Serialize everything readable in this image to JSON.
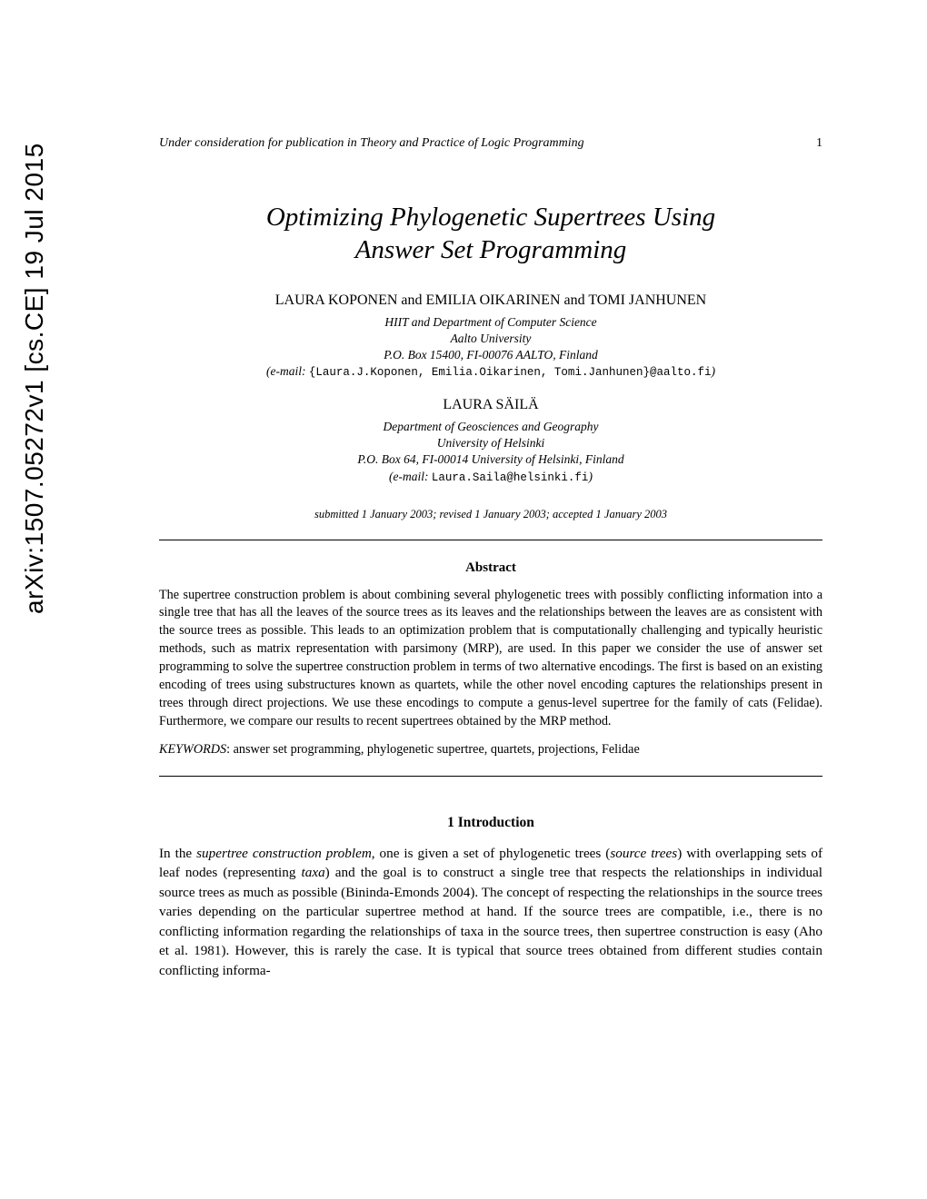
{
  "arxiv_stamp": "arXiv:1507.05272v1  [cs.CE]  19 Jul 2015",
  "running_head": {
    "text": "Under consideration for publication in Theory and Practice of Logic Programming",
    "page_number": "1"
  },
  "title_line1": "Optimizing Phylogenetic Supertrees Using",
  "title_line2": "Answer Set Programming",
  "authors_line1": "LAURA KOPONEN and EMILIA OIKARINEN and TOMI JANHUNEN",
  "affil1_line1": "HIIT and Department of Computer Science",
  "affil1_line2": "Aalto University",
  "affil1_line3": "P.O. Box 15400, FI-00076 AALTO, Finland",
  "email1_label": "e-mail:",
  "email1_addr": "{Laura.J.Koponen, Emilia.Oikarinen, Tomi.Janhunen}@aalto.fi",
  "authors_line2": "LAURA SÄILÄ",
  "affil2_line1": "Department of Geosciences and Geography",
  "affil2_line2": "University of Helsinki",
  "affil2_line3": "P.O. Box 64, FI-00014 University of Helsinki, Finland",
  "email2_label": "e-mail:",
  "email2_addr": "Laura.Saila@helsinki.fi",
  "dates": "submitted 1 January 2003; revised 1 January 2003; accepted 1 January 2003",
  "abstract_heading": "Abstract",
  "abstract_text": "The supertree construction problem is about combining several phylogenetic trees with possibly conflicting information into a single tree that has all the leaves of the source trees as its leaves and the relationships between the leaves are as consistent with the source trees as possible. This leads to an optimization problem that is computationally challenging and typically heuristic methods, such as matrix representation with parsimony (MRP), are used. In this paper we consider the use of answer set programming to solve the supertree construction problem in terms of two alternative encodings. The first is based on an existing encoding of trees using substructures known as quartets, while the other novel encoding captures the relationships present in trees through direct projections. We use these encodings to compute a genus-level supertree for the family of cats (Felidae). Furthermore, we compare our results to recent supertrees obtained by the MRP method.",
  "keywords_label": "KEYWORDS",
  "keywords_text": ": answer set programming, phylogenetic supertree, quartets, projections, Felidae",
  "intro_heading": "1  Introduction",
  "intro_p1_a": "In the ",
  "intro_term1": "supertree construction problem",
  "intro_p1_b": ", one is given a set of phylogenetic trees (",
  "intro_term2": "source trees",
  "intro_p1_c": ") with overlapping sets of leaf nodes (representing ",
  "intro_term3": "taxa",
  "intro_p1_d": ") and the goal is to construct a single tree that respects the relationships in individual source trees as much as possible (Bininda-Emonds 2004). The concept of respecting the relationships in the source trees varies depending on the particular supertree method at hand. If the source trees are compatible, i.e., there is no conflicting information regarding the relationships of taxa in the source trees, then supertree construction is easy (Aho et al. 1981). However, this is rarely the case. It is typical that source trees obtained from different studies contain conflicting informa-"
}
